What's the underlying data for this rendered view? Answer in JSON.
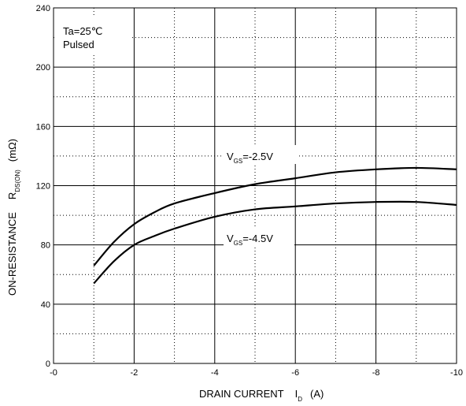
{
  "chart_data": {
    "type": "line",
    "xlabel_prefix": "DRAIN CURRENT",
    "xlabel_symbol": "I",
    "xlabel_subscript": "D",
    "xlabel_unit": "(A)",
    "ylabel_prefix": "ON-RESISTANCE",
    "ylabel_symbol": "R",
    "ylabel_subscript": "DS(ON)",
    "ylabel_unit": "(mΩ)",
    "xlim": [
      0,
      -10
    ],
    "ylim": [
      0,
      240
    ],
    "x_ticks": [
      0,
      -2,
      -4,
      -6,
      -8,
      -10
    ],
    "x_tick_labels": [
      "-0",
      "-2",
      "-4",
      "-6",
      "-8",
      "-10"
    ],
    "y_ticks": [
      0,
      40,
      80,
      120,
      160,
      200,
      240
    ],
    "y_tick_labels": [
      "0",
      "40",
      "80",
      "120",
      "160",
      "200",
      "240"
    ],
    "grid": true,
    "annotations": [
      "Ta=25℃",
      "Pulsed"
    ],
    "series": [
      {
        "name_symbol": "V",
        "name_subscript": "GS",
        "name_value": "=-2.5V",
        "x": [
          -1,
          -1.5,
          -2,
          -2.5,
          -3,
          -4,
          -5,
          -6,
          -7,
          -8,
          -9,
          -10
        ],
        "y": [
          66,
          82,
          94,
          102,
          108,
          115,
          121,
          125,
          129,
          131,
          132,
          131
        ]
      },
      {
        "name_symbol": "V",
        "name_subscript": "GS",
        "name_value": "=-4.5V",
        "x": [
          -1,
          -1.5,
          -2,
          -2.5,
          -3,
          -4,
          -5,
          -6,
          -7,
          -8,
          -9,
          -10
        ],
        "y": [
          54,
          69,
          80,
          86,
          91,
          99,
          104,
          106,
          108,
          109,
          109,
          107
        ]
      }
    ]
  }
}
